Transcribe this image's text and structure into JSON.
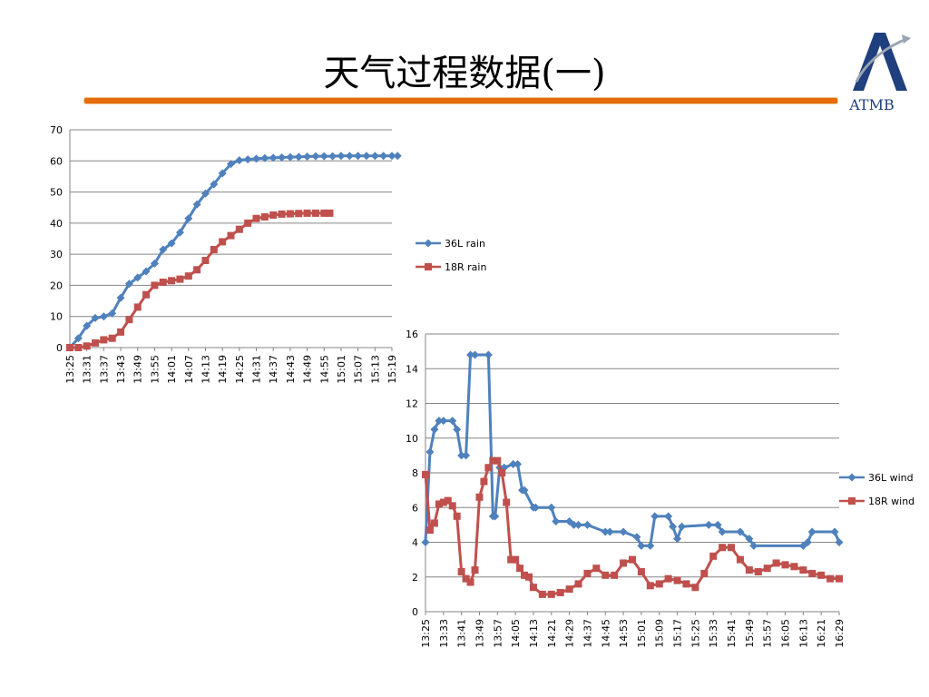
{
  "page": {
    "title": "天气过程数据(一)"
  },
  "logo": {
    "text": "ATMB"
  },
  "colors": {
    "series1": "#4f81bd",
    "series2": "#c0504d",
    "accent": "#e46c0a",
    "grid": "#868686"
  },
  "chart_data": [
    {
      "type": "line",
      "title": "",
      "xlabel": "",
      "ylabel": "",
      "ylim": [
        0,
        70
      ],
      "yticks": [
        0,
        10,
        20,
        30,
        40,
        50,
        60,
        70
      ],
      "xtick_labels": [
        "13:25",
        "13:31",
        "13:37",
        "13:43",
        "13:49",
        "13:55",
        "14:01",
        "14:07",
        "14:13",
        "14:19",
        "14:25",
        "14:31",
        "14:37",
        "14:43",
        "14:49",
        "14:55",
        "15:01",
        "15:07",
        "15:13",
        "15:19"
      ],
      "legend_position": "right",
      "grid": true,
      "series": [
        {
          "name": "36L rain",
          "x": [
            "13:25",
            "13:28",
            "13:31",
            "13:34",
            "13:37",
            "13:40",
            "13:43",
            "13:46",
            "13:49",
            "13:52",
            "13:55",
            "13:58",
            "14:01",
            "14:04",
            "14:07",
            "14:10",
            "14:13",
            "14:16",
            "14:19",
            "14:22",
            "14:25",
            "14:28",
            "14:31",
            "14:34",
            "14:37",
            "14:40",
            "14:43",
            "14:46",
            "14:49",
            "14:52",
            "14:55",
            "14:58",
            "15:01",
            "15:04",
            "15:07",
            "15:10",
            "15:13",
            "15:16",
            "15:19",
            "15:21"
          ],
          "values": [
            0,
            3,
            7,
            9.5,
            10,
            11,
            16,
            20.5,
            22.5,
            24.5,
            27,
            31.5,
            33.5,
            37,
            41.5,
            46,
            49.5,
            52.5,
            56,
            59,
            60.2,
            60.5,
            60.7,
            60.9,
            61,
            61.1,
            61.2,
            61.3,
            61.4,
            61.5,
            61.5,
            61.5,
            61.6,
            61.6,
            61.6,
            61.6,
            61.6,
            61.6,
            61.6,
            61.6
          ]
        },
        {
          "name": "18R rain",
          "x": [
            "13:25",
            "13:28",
            "13:31",
            "13:34",
            "13:37",
            "13:40",
            "13:43",
            "13:46",
            "13:49",
            "13:52",
            "13:55",
            "13:58",
            "14:01",
            "14:04",
            "14:07",
            "14:10",
            "14:13",
            "14:16",
            "14:19",
            "14:22",
            "14:25",
            "14:28",
            "14:31",
            "14:34",
            "14:37",
            "14:40",
            "14:43",
            "14:46",
            "14:49",
            "14:52",
            "14:55",
            "14:57"
          ],
          "values": [
            0,
            0,
            0.5,
            1.5,
            2.5,
            3,
            5,
            9,
            13,
            17,
            20,
            21,
            21.5,
            22,
            23,
            25,
            28,
            31.5,
            34,
            36,
            38,
            40,
            41.5,
            42,
            42.6,
            42.9,
            43,
            43.1,
            43.2,
            43.2,
            43.2,
            43.2
          ]
        }
      ]
    },
    {
      "type": "line",
      "title": "",
      "xlabel": "",
      "ylabel": "",
      "ylim": [
        0,
        16
      ],
      "yticks": [
        0,
        2,
        4,
        6,
        8,
        10,
        12,
        14,
        16
      ],
      "xtick_labels": [
        "13:25",
        "13:33",
        "13:41",
        "13:49",
        "13:57",
        "14:05",
        "14:13",
        "14:21",
        "14:29",
        "14:37",
        "14:45",
        "14:53",
        "15:01",
        "15:09",
        "15:17",
        "15:25",
        "15:33",
        "15:41",
        "15:49",
        "15:57",
        "16:05",
        "16:13",
        "16:21",
        "16:29"
      ],
      "legend_position": "right",
      "grid": true,
      "series": [
        {
          "name": "36L wind",
          "x": [
            "13:25",
            "13:27",
            "13:29",
            "13:31",
            "13:33",
            "13:37",
            "13:39",
            "13:41",
            "13:43",
            "13:45",
            "13:47",
            "13:53",
            "13:55",
            "13:56",
            "13:58",
            "14:00",
            "14:04",
            "14:06",
            "14:08",
            "14:09",
            "14:13",
            "14:14",
            "14:21",
            "14:23",
            "14:29",
            "14:31",
            "14:33",
            "14:37",
            "14:45",
            "14:47",
            "14:53",
            "14:59",
            "15:01",
            "15:05",
            "15:07",
            "15:13",
            "15:15",
            "15:17",
            "15:19",
            "15:31",
            "15:35",
            "15:37",
            "15:45",
            "15:49",
            "15:51",
            "16:13",
            "16:15",
            "16:17",
            "16:27",
            "16:29"
          ],
          "values": [
            4,
            9.2,
            10.5,
            11,
            11,
            11,
            10.5,
            9,
            9,
            14.8,
            14.8,
            14.8,
            5.5,
            5.5,
            8.3,
            8.3,
            8.5,
            8.5,
            7,
            7,
            6,
            6,
            6,
            5.2,
            5.2,
            5,
            5,
            5,
            4.6,
            4.6,
            4.6,
            4.3,
            3.8,
            3.8,
            5.5,
            5.5,
            4.9,
            4.2,
            4.9,
            5,
            5,
            4.6,
            4.6,
            4.2,
            3.8,
            3.8,
            4,
            4.6,
            4.6,
            4
          ]
        },
        {
          "name": "18R wind",
          "x": [
            "13:25",
            "13:27",
            "13:29",
            "13:31",
            "13:33",
            "13:35",
            "13:37",
            "13:39",
            "13:41",
            "13:43",
            "13:45",
            "13:47",
            "13:49",
            "13:51",
            "13:53",
            "13:55",
            "13:57",
            "13:59",
            "14:01",
            "14:03",
            "14:05",
            "14:07",
            "14:09",
            "14:11",
            "14:13",
            "14:17",
            "14:21",
            "14:25",
            "14:29",
            "14:33",
            "14:37",
            "14:41",
            "14:45",
            "14:49",
            "14:53",
            "14:57",
            "15:01",
            "15:05",
            "15:09",
            "15:13",
            "15:17",
            "15:21",
            "15:25",
            "15:29",
            "15:33",
            "15:37",
            "15:41",
            "15:45",
            "15:49",
            "15:53",
            "15:57",
            "16:01",
            "16:05",
            "16:09",
            "16:13",
            "16:17",
            "16:21",
            "16:25",
            "16:29"
          ],
          "values": [
            7.9,
            4.7,
            5.1,
            6.2,
            6.3,
            6.4,
            6.1,
            5.5,
            2.3,
            1.9,
            1.7,
            2.4,
            6.6,
            7.5,
            8.3,
            8.7,
            8.7,
            8,
            6.3,
            3,
            3,
            2.5,
            2.1,
            2,
            1.4,
            1,
            1,
            1.1,
            1.3,
            1.6,
            2.2,
            2.5,
            2.1,
            2.1,
            2.8,
            3,
            2.3,
            1.5,
            1.6,
            1.9,
            1.8,
            1.6,
            1.4,
            2.2,
            3.2,
            3.7,
            3.7,
            3,
            2.4,
            2.3,
            2.5,
            2.8,
            2.7,
            2.6,
            2.4,
            2.2,
            2.1,
            1.9,
            1.9
          ]
        }
      ]
    }
  ]
}
